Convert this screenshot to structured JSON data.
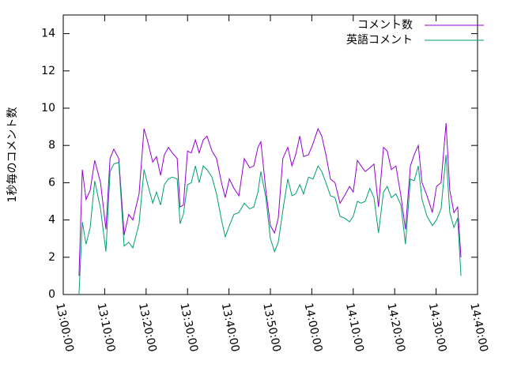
{
  "chart_data": {
    "type": "line",
    "ylabel": "1秒毎のコメント数",
    "x": [
      "13:03:48",
      "13:04:36",
      "13:05:30",
      "13:06:30",
      "13:07:36",
      "13:09:00",
      "13:10:18",
      "13:11:18",
      "13:12:12",
      "13:13:24",
      "13:14:42",
      "13:15:48",
      "13:16:48",
      "13:18:18",
      "13:19:30",
      "13:20:24",
      "13:21:36",
      "13:22:30",
      "13:23:30",
      "13:24:24",
      "13:25:24",
      "13:26:18",
      "13:27:30",
      "13:28:12",
      "13:29:00",
      "13:30:00",
      "13:30:54",
      "13:31:54",
      "13:32:48",
      "13:33:48",
      "13:34:42",
      "13:35:54",
      "13:37:00",
      "13:38:12",
      "13:39:06",
      "13:40:06",
      "13:41:12",
      "13:42:24",
      "13:43:42",
      "13:45:00",
      "13:46:00",
      "13:47:00",
      "13:47:42",
      "13:48:54",
      "13:50:00",
      "13:51:00",
      "13:51:54",
      "13:53:00",
      "13:54:12",
      "13:55:12",
      "13:56:06",
      "13:57:06",
      "13:58:00",
      "13:59:12",
      "14:00:18",
      "14:01:30",
      "14:02:24",
      "14:03:24",
      "14:04:30",
      "14:05:36",
      "14:06:48",
      "14:07:54",
      "14:09:06",
      "14:10:00",
      "14:11:00",
      "14:11:54",
      "14:12:54",
      "14:14:00",
      "14:15:00",
      "14:16:06",
      "14:17:18",
      "14:18:12",
      "14:19:12",
      "14:20:18",
      "14:21:30",
      "14:22:36",
      "14:23:48",
      "14:24:42",
      "14:25:42",
      "14:26:36",
      "14:27:48",
      "14:29:06",
      "14:30:06",
      "14:31:12",
      "14:32:24",
      "14:33:18",
      "14:34:18",
      "14:35:12",
      "14:36:00"
    ],
    "series": [
      {
        "name": "コメント数",
        "color": "#9400d3",
        "values": [
          1.0,
          6.7,
          5.1,
          5.6,
          7.2,
          6.0,
          3.5,
          7.3,
          7.8,
          7.3,
          3.2,
          4.3,
          4.0,
          5.4,
          8.9,
          8.2,
          7.1,
          7.4,
          6.4,
          7.5,
          7.9,
          7.6,
          7.3,
          4.7,
          4.8,
          7.7,
          7.6,
          8.3,
          7.6,
          8.3,
          8.5,
          7.7,
          7.3,
          6.0,
          5.2,
          6.2,
          5.7,
          5.3,
          7.3,
          6.8,
          6.9,
          7.9,
          8.2,
          5.6,
          3.7,
          3.3,
          4.1,
          7.3,
          7.9,
          6.9,
          7.5,
          8.5,
          7.4,
          7.5,
          8.1,
          8.9,
          8.5,
          7.5,
          6.2,
          6.0,
          4.9,
          5.3,
          5.8,
          5.5,
          7.2,
          6.9,
          6.6,
          6.8,
          7.0,
          4.7,
          7.9,
          7.7,
          6.7,
          6.9,
          5.3,
          3.5,
          6.9,
          7.5,
          8.0,
          6.0,
          5.3,
          4.4,
          5.8,
          6.0,
          9.2,
          5.6,
          4.4,
          4.7,
          2.0
        ]
      },
      {
        "name": "英語コメント",
        "color": "#009e73",
        "values": [
          0,
          3.9,
          2.7,
          3.6,
          6.1,
          4.6,
          2.3,
          6.6,
          7.0,
          7.1,
          2.6,
          2.8,
          2.5,
          3.8,
          6.7,
          5.9,
          4.9,
          5.5,
          4.8,
          5.9,
          6.2,
          6.3,
          6.2,
          3.8,
          4.3,
          5.9,
          6.0,
          6.9,
          6.0,
          6.9,
          6.7,
          6.3,
          5.4,
          4.0,
          3.1,
          3.7,
          4.3,
          4.4,
          4.9,
          4.6,
          4.7,
          5.5,
          6.6,
          5.2,
          3.0,
          2.3,
          2.8,
          4.5,
          6.2,
          5.3,
          5.4,
          5.9,
          5.4,
          6.3,
          6.2,
          6.9,
          6.6,
          6.0,
          5.3,
          5.2,
          4.2,
          4.1,
          3.9,
          4.2,
          5.0,
          4.9,
          5.0,
          5.7,
          5.2,
          3.3,
          5.5,
          5.8,
          5.2,
          5.4,
          4.8,
          2.7,
          6.2,
          6.1,
          6.9,
          5.1,
          4.2,
          3.7,
          4.0,
          4.6,
          7.5,
          4.4,
          3.6,
          4.1,
          1.0
        ]
      }
    ],
    "xlim": [
      "13:00:00",
      "14:40:00"
    ],
    "xticks": [
      "13:00:00",
      "13:10:00",
      "13:20:00",
      "13:30:00",
      "13:40:00",
      "13:50:00",
      "14:00:00",
      "14:10:00",
      "14:20:00",
      "14:30:00",
      "14:40:00"
    ],
    "ylim": [
      0,
      15
    ],
    "yticks": [
      0,
      2,
      4,
      6,
      8,
      10,
      12,
      14
    ],
    "legend": "top-right"
  }
}
